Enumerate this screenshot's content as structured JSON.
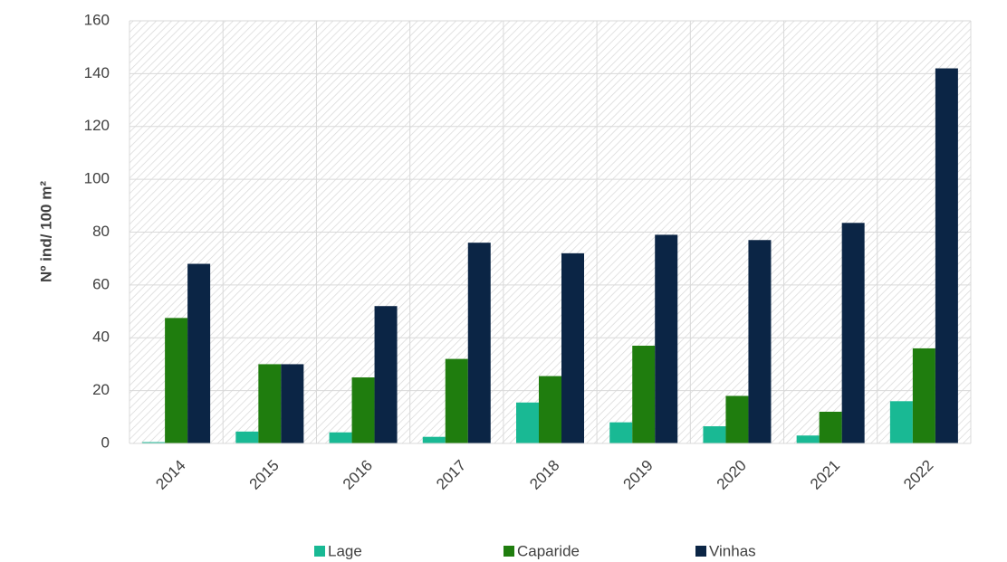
{
  "chart_data": {
    "type": "bar",
    "y_label": "Nº ind/ 100 m²",
    "categories": [
      "2014",
      "2015",
      "2016",
      "2017",
      "2018",
      "2019",
      "2020",
      "2021",
      "2022"
    ],
    "series": [
      {
        "name": "Lage",
        "color": "#19b994",
        "values": [
          0.5,
          4.5,
          4.2,
          2.5,
          15.5,
          8,
          6.5,
          3,
          16
        ]
      },
      {
        "name": "Caparide",
        "color": "#1f7d0e",
        "values": [
          47.5,
          30,
          25,
          32,
          25.5,
          37,
          18,
          12,
          36
        ]
      },
      {
        "name": "Vinhas",
        "color": "#0b2545",
        "values": [
          68,
          30,
          52,
          76,
          72,
          79,
          77,
          83.5,
          142
        ]
      }
    ],
    "ylim": [
      0,
      160
    ],
    "yticks": [
      0,
      20,
      40,
      60,
      80,
      100,
      120,
      140,
      160
    ],
    "grid": true
  }
}
